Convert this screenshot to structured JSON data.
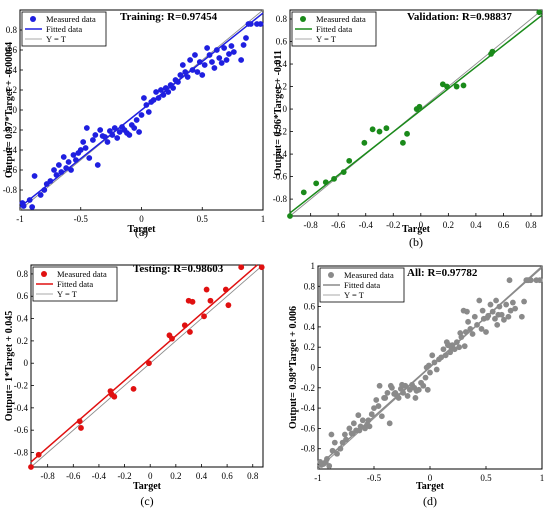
{
  "chart_data": [
    {
      "type": "scatter",
      "panel_label": "(a)",
      "title": "Training: R=0.97454",
      "xlabel": "Target",
      "ylabel": "Output= 0.97*Target + -0.00064",
      "xlim": [
        -1,
        1
      ],
      "ylim": [
        -1,
        1
      ],
      "xticks": [
        -1,
        -0.5,
        0,
        0.5,
        1
      ],
      "xtick_labels": [
        "-1",
        "-0.5",
        "0",
        "0.5",
        "1"
      ],
      "yticks": [
        -0.8,
        -0.6,
        -0.4,
        -0.2,
        0,
        0.2,
        0.4,
        0.6,
        0.8
      ],
      "ytick_labels": [
        "-0.8",
        "-0.6",
        "-0.4",
        "-0.2",
        "0",
        "0.2",
        "0.4",
        "0.6",
        "0.8"
      ],
      "legend": [
        "Measured data",
        "Fitted data",
        "Y = T"
      ],
      "legend_placement": "top-left",
      "color": "#1f1fe0",
      "fit": {
        "slope": 0.97,
        "intercept": -0.00064
      },
      "grid": false,
      "points": [
        [
          -0.98,
          -0.93
        ],
        [
          -0.97,
          -0.96
        ],
        [
          -0.92,
          -0.9
        ],
        [
          -0.9,
          -0.97
        ],
        [
          -0.88,
          -0.66
        ],
        [
          -0.83,
          -0.85
        ],
        [
          -0.8,
          -0.8
        ],
        [
          -0.78,
          -0.74
        ],
        [
          -0.75,
          -0.71
        ],
        [
          -0.72,
          -0.6
        ],
        [
          -0.7,
          -0.65
        ],
        [
          -0.68,
          -0.55
        ],
        [
          -0.66,
          -0.62
        ],
        [
          -0.64,
          -0.47
        ],
        [
          -0.62,
          -0.58
        ],
        [
          -0.6,
          -0.52
        ],
        [
          -0.58,
          -0.6
        ],
        [
          -0.56,
          -0.45
        ],
        [
          -0.54,
          -0.5
        ],
        [
          -0.52,
          -0.43
        ],
        [
          -0.5,
          -0.4
        ],
        [
          -0.48,
          -0.32
        ],
        [
          -0.46,
          -0.38
        ],
        [
          -0.45,
          -0.18
        ],
        [
          -0.43,
          -0.48
        ],
        [
          -0.4,
          -0.3
        ],
        [
          -0.38,
          -0.25
        ],
        [
          -0.36,
          -0.55
        ],
        [
          -0.34,
          -0.2
        ],
        [
          -0.32,
          -0.26
        ],
        [
          -0.3,
          -0.27
        ],
        [
          -0.28,
          -0.32
        ],
        [
          -0.26,
          -0.21
        ],
        [
          -0.24,
          -0.25
        ],
        [
          -0.22,
          -0.18
        ],
        [
          -0.2,
          -0.28
        ],
        [
          -0.18,
          -0.22
        ],
        [
          -0.16,
          -0.17
        ],
        [
          -0.14,
          -0.2
        ],
        [
          -0.12,
          -0.23
        ],
        [
          -0.1,
          -0.25
        ],
        [
          -0.08,
          -0.15
        ],
        [
          -0.06,
          -0.18
        ],
        [
          -0.04,
          -0.1
        ],
        [
          -0.02,
          -0.22
        ],
        [
          0.0,
          -0.05
        ],
        [
          0.02,
          0.12
        ],
        [
          0.04,
          0.05
        ],
        [
          0.06,
          -0.02
        ],
        [
          0.08,
          0.08
        ],
        [
          0.1,
          0.1
        ],
        [
          0.12,
          0.18
        ],
        [
          0.14,
          0.12
        ],
        [
          0.16,
          0.2
        ],
        [
          0.18,
          0.15
        ],
        [
          0.2,
          0.22
        ],
        [
          0.22,
          0.18
        ],
        [
          0.24,
          0.25
        ],
        [
          0.26,
          0.22
        ],
        [
          0.28,
          0.3
        ],
        [
          0.3,
          0.28
        ],
        [
          0.32,
          0.35
        ],
        [
          0.34,
          0.45
        ],
        [
          0.36,
          0.38
        ],
        [
          0.38,
          0.33
        ],
        [
          0.4,
          0.5
        ],
        [
          0.42,
          0.4
        ],
        [
          0.44,
          0.55
        ],
        [
          0.46,
          0.38
        ],
        [
          0.48,
          0.48
        ],
        [
          0.5,
          0.35
        ],
        [
          0.52,
          0.45
        ],
        [
          0.54,
          0.62
        ],
        [
          0.56,
          0.55
        ],
        [
          0.58,
          0.48
        ],
        [
          0.6,
          0.42
        ],
        [
          0.62,
          0.6
        ],
        [
          0.64,
          0.52
        ],
        [
          0.66,
          0.47
        ],
        [
          0.68,
          0.62
        ],
        [
          0.7,
          0.5
        ],
        [
          0.72,
          0.56
        ],
        [
          0.74,
          0.64
        ],
        [
          0.76,
          0.58
        ],
        [
          0.82,
          0.5
        ],
        [
          0.84,
          0.65
        ],
        [
          0.86,
          0.72
        ],
        [
          0.88,
          0.86
        ],
        [
          0.9,
          0.86
        ],
        [
          0.95,
          0.86
        ],
        [
          0.98,
          0.86
        ]
      ]
    },
    {
      "type": "scatter",
      "panel_label": "(b)",
      "title": "Validation: R=0.98837",
      "xlabel": "Target",
      "ylabel": "Output= 0.96*Target + -0.011",
      "xlim": [
        -0.95,
        0.88
      ],
      "ylim": [
        -0.95,
        0.88
      ],
      "xticks": [
        -0.8,
        -0.6,
        -0.4,
        -0.2,
        0,
        0.2,
        0.4,
        0.6,
        0.8
      ],
      "xtick_labels": [
        "-0.8",
        "-0.6",
        "-0.4",
        "-0.2",
        "0",
        "0.2",
        "0.4",
        "0.6",
        "0.8"
      ],
      "yticks": [
        -0.8,
        -0.6,
        -0.4,
        -0.2,
        0,
        0.2,
        0.4,
        0.6,
        0.8
      ],
      "ytick_labels": [
        "-0.8",
        "-0.6",
        "-0.4",
        "-0.2",
        "0",
        "0.2",
        "0.4",
        "0.6",
        "0.8"
      ],
      "legend": [
        "Measured data",
        "Fitted data",
        "Y = T"
      ],
      "legend_placement": "top-left",
      "color": "#1a8a1a",
      "fit": {
        "slope": 0.96,
        "intercept": -0.011
      },
      "grid": false,
      "points": [
        [
          -0.95,
          -0.95
        ],
        [
          -0.85,
          -0.74
        ],
        [
          -0.76,
          -0.66
        ],
        [
          -0.69,
          -0.65
        ],
        [
          -0.63,
          -0.62
        ],
        [
          -0.56,
          -0.56
        ],
        [
          -0.52,
          -0.46
        ],
        [
          -0.41,
          -0.3
        ],
        [
          -0.35,
          -0.18
        ],
        [
          -0.3,
          -0.2
        ],
        [
          -0.25,
          -0.17
        ],
        [
          -0.13,
          -0.3
        ],
        [
          -0.1,
          -0.22
        ],
        [
          -0.03,
          0.0
        ],
        [
          -0.01,
          0.02
        ],
        [
          0.16,
          0.22
        ],
        [
          0.19,
          0.2
        ],
        [
          0.26,
          0.2
        ],
        [
          0.31,
          0.21
        ],
        [
          0.51,
          0.49
        ],
        [
          0.52,
          0.51
        ],
        [
          0.86,
          0.86
        ]
      ]
    },
    {
      "type": "scatter",
      "panel_label": "(c)",
      "title": "Testing: R=0.98603",
      "xlabel": "Target",
      "ylabel": "Output= 1*Target + 0.045",
      "xlim": [
        -0.93,
        0.88
      ],
      "ylim": [
        -0.93,
        0.88
      ],
      "xticks": [
        -0.8,
        -0.6,
        -0.4,
        -0.2,
        0,
        0.2,
        0.4,
        0.6,
        0.8
      ],
      "xtick_labels": [
        "-0.8",
        "-0.6",
        "-0.4",
        "-0.2",
        "0",
        "0.2",
        "0.4",
        "0.6",
        "0.8"
      ],
      "yticks": [
        -0.8,
        -0.6,
        -0.4,
        -0.2,
        0,
        0.2,
        0.4,
        0.6,
        0.8
      ],
      "ytick_labels": [
        "-0.8",
        "-0.6",
        "-0.4",
        "-0.2",
        "0",
        "0.2",
        "0.4",
        "0.6",
        "0.8"
      ],
      "legend": [
        "Measured data",
        "Fitted data",
        "Y = T"
      ],
      "legend_placement": "top-left",
      "color": "#e01010",
      "fit": {
        "slope": 1,
        "intercept": 0.045
      },
      "grid": false,
      "points": [
        [
          -0.93,
          -0.93
        ],
        [
          -0.87,
          -0.82
        ],
        [
          -0.55,
          -0.52
        ],
        [
          -0.54,
          -0.58
        ],
        [
          -0.31,
          -0.25
        ],
        [
          -0.3,
          -0.28
        ],
        [
          -0.28,
          -0.3
        ],
        [
          -0.13,
          -0.23
        ],
        [
          -0.01,
          0.0
        ],
        [
          0.15,
          0.25
        ],
        [
          0.17,
          0.22
        ],
        [
          0.27,
          0.34
        ],
        [
          0.3,
          0.56
        ],
        [
          0.31,
          0.28
        ],
        [
          0.33,
          0.55
        ],
        [
          0.42,
          0.42
        ],
        [
          0.44,
          0.66
        ],
        [
          0.47,
          0.56
        ],
        [
          0.59,
          0.66
        ],
        [
          0.61,
          0.52
        ],
        [
          0.71,
          0.86
        ],
        [
          0.87,
          0.86
        ]
      ]
    },
    {
      "type": "scatter",
      "panel_label": "(d)",
      "title": "All: R=0.97782",
      "xlabel": "Target",
      "ylabel": "Output= 0.98*Target + 0.006",
      "xlim": [
        -1,
        1
      ],
      "ylim": [
        -1,
        1
      ],
      "xticks": [
        -1,
        -0.5,
        0,
        0.5,
        1
      ],
      "xtick_labels": [
        "-1",
        "-0.5",
        "0",
        "0.5",
        "1"
      ],
      "yticks": [
        -0.8,
        -0.6,
        -0.4,
        -0.2,
        0,
        0.2,
        0.4,
        0.6,
        0.8,
        1
      ],
      "ytick_labels": [
        "-0.8",
        "-0.6",
        "-0.4",
        "-0.2",
        "0",
        "0.2",
        "0.4",
        "0.6",
        "0.8",
        "1"
      ],
      "legend": [
        "Measured data",
        "Fitted data",
        "Y = T"
      ],
      "legend_placement": "top-left",
      "color": "#8a8a8a",
      "fit": {
        "slope": 0.98,
        "intercept": 0.006
      },
      "grid": false,
      "points": [
        [
          -0.98,
          -0.93
        ],
        [
          -0.97,
          -0.96
        ],
        [
          -0.95,
          -0.95
        ],
        [
          -0.93,
          -0.93
        ],
        [
          -0.92,
          -0.9
        ],
        [
          -0.9,
          -0.97
        ],
        [
          -0.88,
          -0.66
        ],
        [
          -0.87,
          -0.82
        ],
        [
          -0.85,
          -0.74
        ],
        [
          -0.83,
          -0.85
        ],
        [
          -0.8,
          -0.8
        ],
        [
          -0.78,
          -0.74
        ],
        [
          -0.76,
          -0.66
        ],
        [
          -0.75,
          -0.71
        ],
        [
          -0.72,
          -0.6
        ],
        [
          -0.7,
          -0.65
        ],
        [
          -0.69,
          -0.65
        ],
        [
          -0.68,
          -0.55
        ],
        [
          -0.66,
          -0.62
        ],
        [
          -0.64,
          -0.47
        ],
        [
          -0.63,
          -0.62
        ],
        [
          -0.62,
          -0.58
        ],
        [
          -0.6,
          -0.52
        ],
        [
          -0.58,
          -0.6
        ],
        [
          -0.56,
          -0.56
        ],
        [
          -0.55,
          -0.52
        ],
        [
          -0.54,
          -0.58
        ],
        [
          -0.52,
          -0.46
        ],
        [
          -0.5,
          -0.4
        ],
        [
          -0.48,
          -0.32
        ],
        [
          -0.46,
          -0.38
        ],
        [
          -0.45,
          -0.18
        ],
        [
          -0.43,
          -0.48
        ],
        [
          -0.41,
          -0.3
        ],
        [
          -0.4,
          -0.3
        ],
        [
          -0.38,
          -0.25
        ],
        [
          -0.36,
          -0.55
        ],
        [
          -0.35,
          -0.18
        ],
        [
          -0.34,
          -0.2
        ],
        [
          -0.32,
          -0.26
        ],
        [
          -0.31,
          -0.25
        ],
        [
          -0.3,
          -0.27
        ],
        [
          -0.28,
          -0.3
        ],
        [
          -0.26,
          -0.21
        ],
        [
          -0.25,
          -0.17
        ],
        [
          -0.24,
          -0.25
        ],
        [
          -0.22,
          -0.18
        ],
        [
          -0.2,
          -0.28
        ],
        [
          -0.18,
          -0.22
        ],
        [
          -0.16,
          -0.17
        ],
        [
          -0.14,
          -0.2
        ],
        [
          -0.13,
          -0.3
        ],
        [
          -0.12,
          -0.23
        ],
        [
          -0.1,
          -0.22
        ],
        [
          -0.08,
          -0.15
        ],
        [
          -0.06,
          -0.18
        ],
        [
          -0.04,
          -0.1
        ],
        [
          -0.03,
          0.0
        ],
        [
          -0.02,
          -0.22
        ],
        [
          -0.01,
          0.02
        ],
        [
          0.0,
          -0.05
        ],
        [
          0.02,
          0.12
        ],
        [
          0.04,
          0.05
        ],
        [
          0.06,
          -0.02
        ],
        [
          0.08,
          0.08
        ],
        [
          0.1,
          0.1
        ],
        [
          0.12,
          0.18
        ],
        [
          0.14,
          0.12
        ],
        [
          0.15,
          0.25
        ],
        [
          0.16,
          0.22
        ],
        [
          0.17,
          0.22
        ],
        [
          0.18,
          0.15
        ],
        [
          0.19,
          0.2
        ],
        [
          0.2,
          0.22
        ],
        [
          0.22,
          0.18
        ],
        [
          0.24,
          0.25
        ],
        [
          0.26,
          0.2
        ],
        [
          0.27,
          0.34
        ],
        [
          0.28,
          0.3
        ],
        [
          0.3,
          0.56
        ],
        [
          0.31,
          0.21
        ],
        [
          0.32,
          0.35
        ],
        [
          0.33,
          0.55
        ],
        [
          0.34,
          0.45
        ],
        [
          0.36,
          0.38
        ],
        [
          0.38,
          0.33
        ],
        [
          0.4,
          0.5
        ],
        [
          0.42,
          0.42
        ],
        [
          0.44,
          0.66
        ],
        [
          0.46,
          0.38
        ],
        [
          0.47,
          0.56
        ],
        [
          0.48,
          0.48
        ],
        [
          0.5,
          0.35
        ],
        [
          0.51,
          0.49
        ],
        [
          0.52,
          0.51
        ],
        [
          0.54,
          0.62
        ],
        [
          0.56,
          0.55
        ],
        [
          0.58,
          0.48
        ],
        [
          0.59,
          0.66
        ],
        [
          0.6,
          0.42
        ],
        [
          0.61,
          0.52
        ],
        [
          0.62,
          0.6
        ],
        [
          0.64,
          0.52
        ],
        [
          0.66,
          0.47
        ],
        [
          0.68,
          0.62
        ],
        [
          0.7,
          0.5
        ],
        [
          0.71,
          0.86
        ],
        [
          0.72,
          0.56
        ],
        [
          0.74,
          0.64
        ],
        [
          0.76,
          0.58
        ],
        [
          0.82,
          0.5
        ],
        [
          0.84,
          0.65
        ],
        [
          0.86,
          0.86
        ],
        [
          0.87,
          0.86
        ],
        [
          0.88,
          0.86
        ],
        [
          0.9,
          0.86
        ],
        [
          0.95,
          0.86
        ],
        [
          0.98,
          0.86
        ]
      ]
    }
  ]
}
